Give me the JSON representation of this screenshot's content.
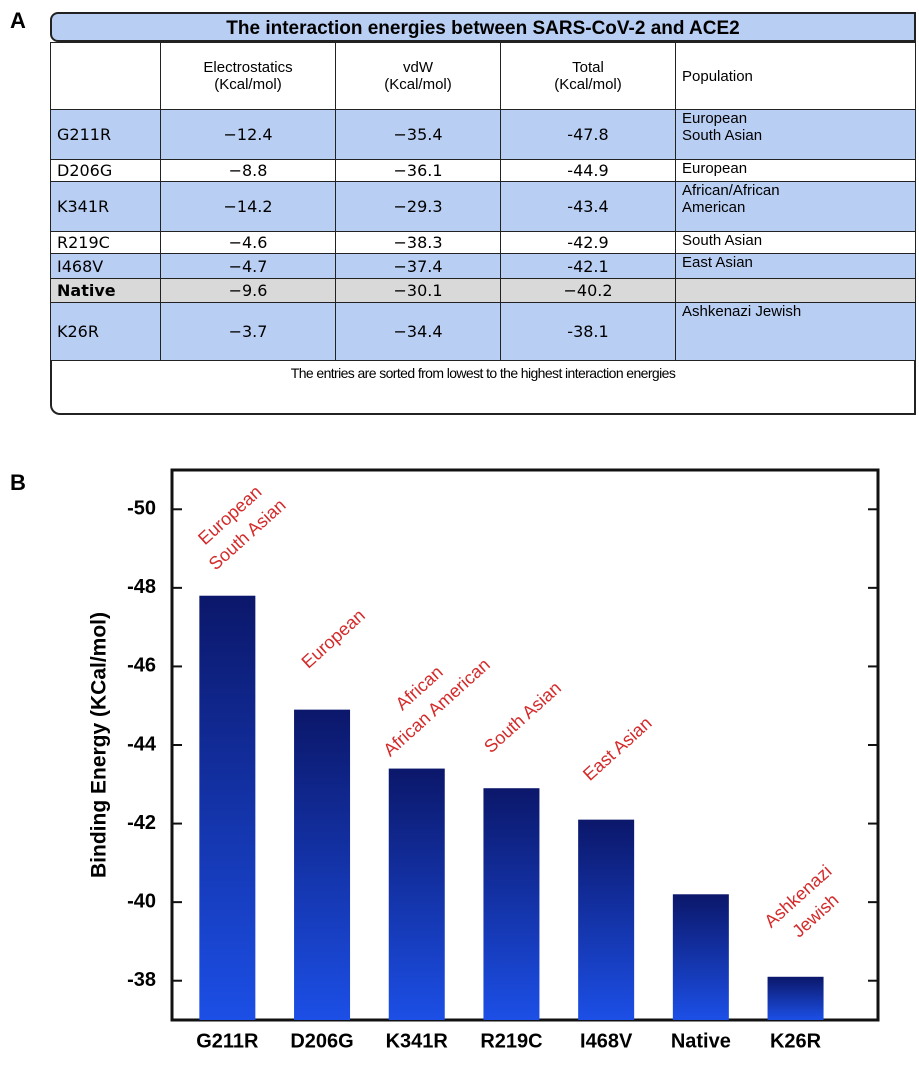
{
  "panel_labels": [
    "A",
    "B"
  ],
  "table": {
    "title": "The interaction energies between SARS-CoV-2 and ACE2",
    "headers": [
      null,
      "Electrostatics\n(Kcal/mol)",
      "vdW\n(Kcal/mol)",
      "Total\n(Kcal/mol)",
      "Population"
    ],
    "rows": [
      [
        "G211R",
        "−12.4",
        "−35.4",
        "-47.8",
        "European\nSouth Asian"
      ],
      [
        "D206G",
        "−8.8",
        "−36.1",
        "-44.9",
        "European"
      ],
      [
        "K341R",
        "−14.2",
        "−29.3",
        "-43.4",
        "African/African\nAmerican"
      ],
      [
        "R219C",
        "−4.6",
        "−38.3",
        "-42.9",
        "South Asian"
      ],
      [
        "I468V",
        "−4.7",
        "−37.4",
        "-42.1",
        "East Asian"
      ],
      [
        "Native",
        "−9.6",
        "−30.1",
        "−40.2",
        null
      ],
      [
        "K26R",
        "−3.7",
        "−34.4",
        "-38.1",
        "Ashkenazi Jewish"
      ]
    ],
    "row_colors": [
      "#b9cef3",
      "#ffffff",
      "#b9cef3",
      "#ffffff",
      "#b9cef3",
      "#d9d9d9",
      "#b9cef3"
    ],
    "footer": "The entries are sorted from lowest to the highest interaction energies"
  },
  "chart_data": {
    "type": "bar",
    "y_label": "Binding Energy (KCal/mol)",
    "categories": [
      "G211R",
      "D206G",
      "K341R",
      "R219C",
      "I468V",
      "Native",
      "K26R"
    ],
    "values": [
      -47.8,
      -44.9,
      -43.4,
      -42.9,
      -42.1,
      -40.2,
      -38.1
    ],
    "bar_labels": [
      [
        "European",
        "South Asian"
      ],
      [
        "European"
      ],
      [
        "African",
        "African American"
      ],
      [
        "South Asian"
      ],
      [
        "East Asian"
      ],
      null,
      [
        "Ashkenazi",
        "Jewish"
      ]
    ],
    "color_top": "#0b176a",
    "color_bottom": "#1c4fe6",
    "label_color": "#d42a2a",
    "ylim": [
      -37,
      -51
    ],
    "yticks": [
      -38,
      -40,
      -42,
      -44,
      -46,
      -48,
      -50
    ]
  }
}
